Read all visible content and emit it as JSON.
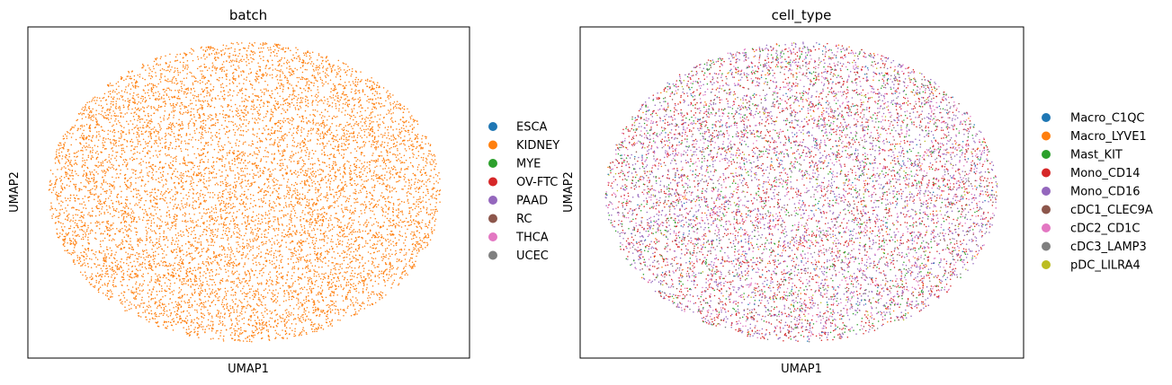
{
  "chart_data": [
    {
      "type": "scatter",
      "title": "batch",
      "xlabel": "UMAP1",
      "ylabel": "UMAP2",
      "grid": false,
      "xticks": [],
      "yticks": [],
      "legend_position": "right",
      "point_shape": "ellipse-cloud",
      "point_count_approx": 30000,
      "series": [
        {
          "name": "ESCA",
          "color": "#1f77b4",
          "share": 0.0
        },
        {
          "name": "KIDNEY",
          "color": "#ff7f0e",
          "share": 1.0
        },
        {
          "name": "MYE",
          "color": "#2ca02c",
          "share": 0.0
        },
        {
          "name": "OV-FTC",
          "color": "#d62728",
          "share": 0.0
        },
        {
          "name": "PAAD",
          "color": "#9467bd",
          "share": 0.0
        },
        {
          "name": "RC",
          "color": "#8c564b",
          "share": 0.0
        },
        {
          "name": "THCA",
          "color": "#e377c2",
          "share": 0.0
        },
        {
          "name": "UCEC",
          "color": "#7f7f7f",
          "share": 0.0
        }
      ]
    },
    {
      "type": "scatter",
      "title": "cell_type",
      "xlabel": "UMAP1",
      "ylabel": "UMAP2",
      "grid": false,
      "xticks": [],
      "yticks": [],
      "legend_position": "right",
      "point_shape": "ellipse-cloud",
      "point_count_approx": 30000,
      "series": [
        {
          "name": "Macro_C1QC",
          "color": "#1f77b4",
          "share": 0.02
        },
        {
          "name": "Macro_LYVE1",
          "color": "#ff7f0e",
          "share": 0.02
        },
        {
          "name": "Mast_KIT",
          "color": "#2ca02c",
          "share": 0.09
        },
        {
          "name": "Mono_CD14",
          "color": "#d62728",
          "share": 0.3
        },
        {
          "name": "Mono_CD16",
          "color": "#9467bd",
          "share": 0.3
        },
        {
          "name": "cDC1_CLEC9A",
          "color": "#8c564b",
          "share": 0.05
        },
        {
          "name": "cDC2_CD1C",
          "color": "#e377c2",
          "share": 0.16
        },
        {
          "name": "cDC3_LAMP3",
          "color": "#7f7f7f",
          "share": 0.04
        },
        {
          "name": "pDC_LILRA4",
          "color": "#bcbd22",
          "share": 0.02
        }
      ]
    }
  ]
}
